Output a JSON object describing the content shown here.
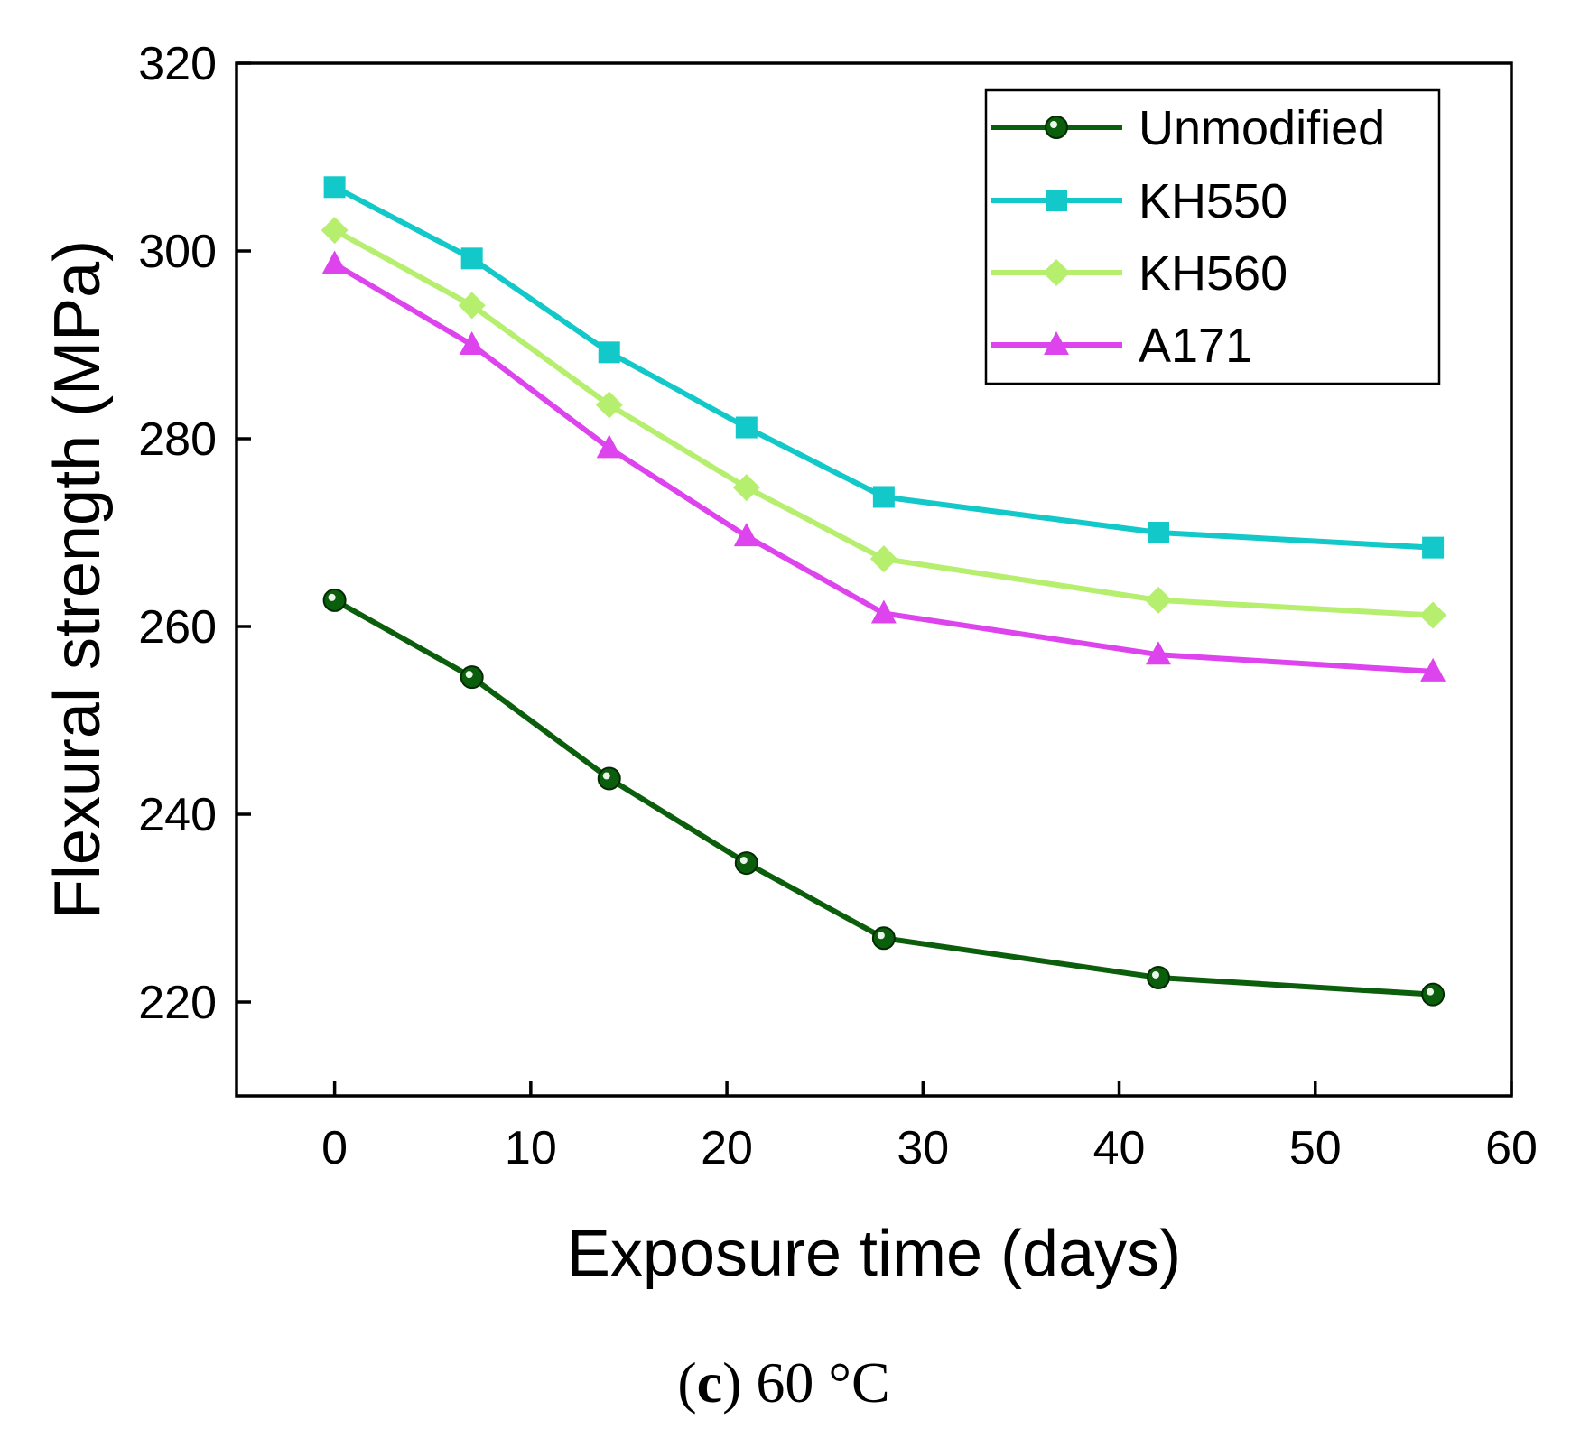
{
  "chart_data": {
    "type": "line",
    "title": "",
    "xlabel": "Exposure time (days)",
    "ylabel": "Flexural strength (MPa)",
    "xlim": [
      -5,
      60
    ],
    "ylim": [
      210,
      320
    ],
    "xticks": [
      0,
      10,
      20,
      30,
      40,
      50,
      60
    ],
    "yticks": [
      220,
      240,
      260,
      280,
      300,
      320
    ],
    "x": [
      0,
      7,
      14,
      21,
      28,
      42,
      56
    ],
    "series": [
      {
        "name": "Unmodified",
        "color": "#0b5e0b",
        "marker": "circle",
        "values": [
          262.8,
          254.6,
          243.8,
          234.8,
          226.8,
          222.6,
          220.8
        ]
      },
      {
        "name": "KH550",
        "color": "#12c8c8",
        "marker": "square",
        "values": [
          306.8,
          299.2,
          289.2,
          281.2,
          273.8,
          270.0,
          268.4
        ]
      },
      {
        "name": "KH560",
        "color": "#b6ee6e",
        "marker": "diamond",
        "values": [
          302.2,
          294.2,
          283.6,
          274.8,
          267.2,
          262.8,
          261.2
        ]
      },
      {
        "name": "A171",
        "color": "#dd44ee",
        "marker": "triangle",
        "values": [
          298.6,
          290.0,
          279.0,
          269.6,
          261.4,
          257.0,
          255.2
        ]
      }
    ],
    "legend_position": "top-right",
    "grid": false
  },
  "caption": {
    "letter": "c",
    "open_paren": "(",
    "close_paren": ")",
    "text": " 60 °C"
  }
}
